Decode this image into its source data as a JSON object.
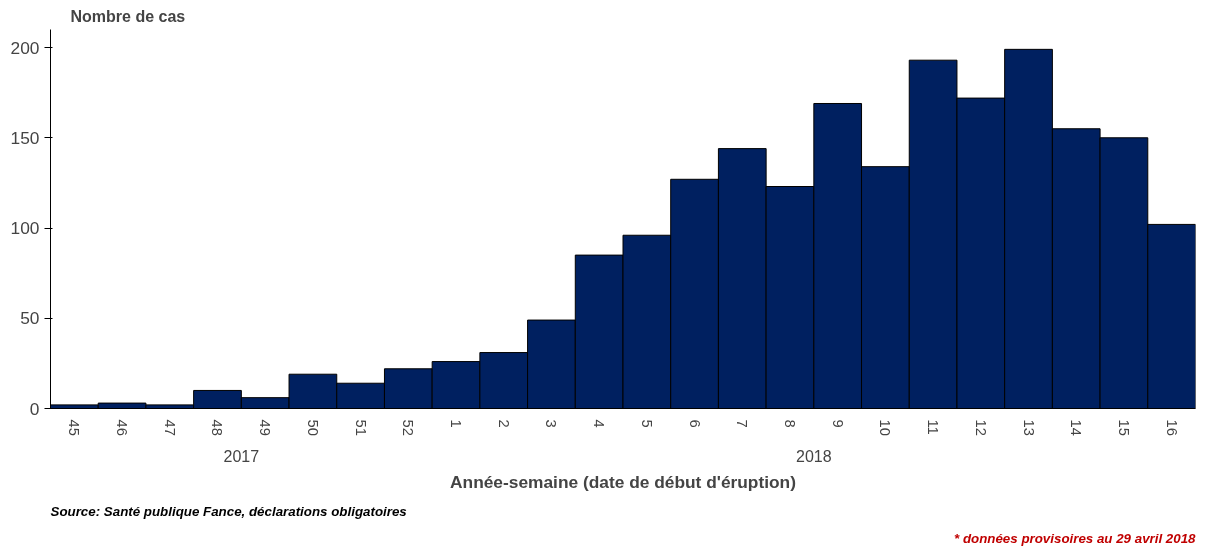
{
  "chart_data": {
    "type": "bar",
    "ylabel": "Nombre de cas",
    "xlabel": "Année-semaine (date de début d'éruption)",
    "categories": [
      "45",
      "46",
      "47",
      "48",
      "49",
      "50",
      "51",
      "52",
      "1",
      "2",
      "3",
      "4",
      "5",
      "6",
      "7",
      "8",
      "9",
      "10",
      "11",
      "12",
      "13",
      "14",
      "15",
      "16"
    ],
    "values": [
      2,
      3,
      2,
      10,
      6,
      19,
      14,
      22,
      26,
      31,
      49,
      85,
      96,
      127,
      144,
      123,
      169,
      134,
      193,
      172,
      199,
      155,
      150,
      102
    ],
    "color": "#002060",
    "ylim": [
      0,
      210
    ],
    "yticks": [
      0,
      50,
      100,
      150,
      200
    ],
    "grid": false,
    "annotations": [
      "2017",
      "2018",
      "Source: Santé publique Fance, déclarations obligatoires",
      "* données provisoires au 29 avril 2018"
    ]
  }
}
